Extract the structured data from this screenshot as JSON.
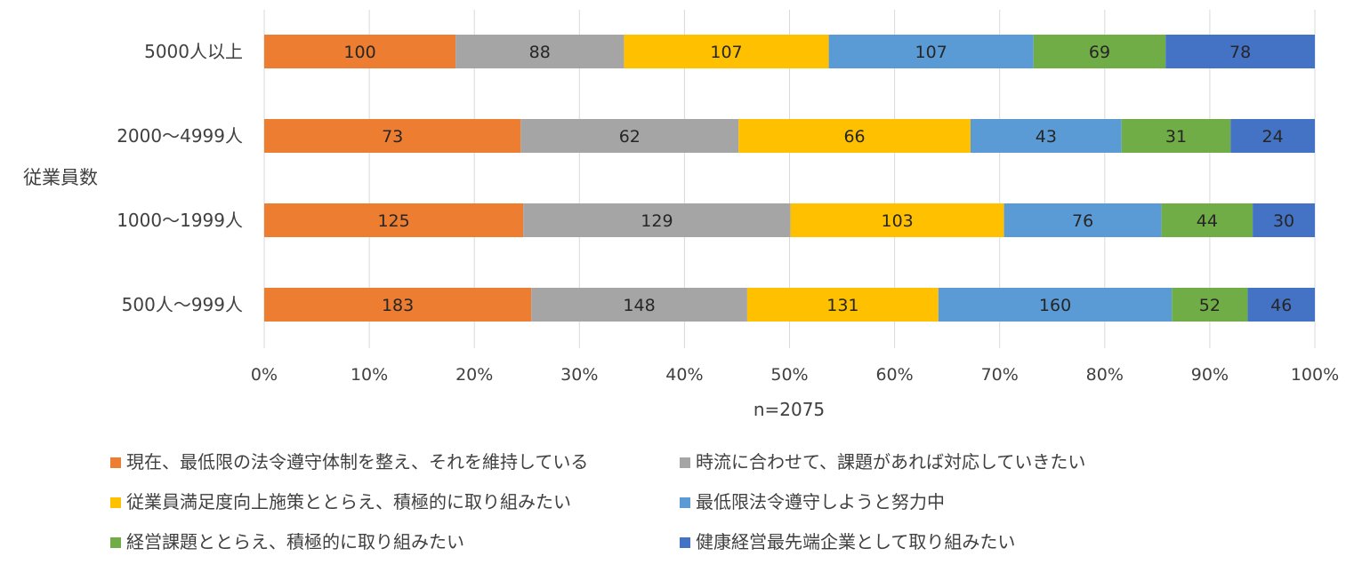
{
  "chart_data": {
    "type": "bar",
    "orientation": "horizontal",
    "stacked": "percent",
    "ylabel": "従業員数",
    "xlabel": "n=2075",
    "xlim": [
      0,
      100
    ],
    "x_ticks": [
      "0%",
      "10%",
      "20%",
      "30%",
      "40%",
      "50%",
      "60%",
      "70%",
      "80%",
      "90%",
      "100%"
    ],
    "grid": "vertical",
    "legend_position": "bottom",
    "categories": [
      "500人～999人",
      "1000～1999人",
      "2000～4999人",
      "5000人以上"
    ],
    "series": [
      {
        "name": "現在、最低限の法令遵守体制を整え、それを維持している",
        "color": "#ed7d31",
        "values": [
          183,
          125,
          73,
          100
        ]
      },
      {
        "name": "時流に合わせて、課題があれば対応していきたい",
        "color": "#a5a5a5",
        "values": [
          148,
          129,
          62,
          88
        ]
      },
      {
        "name": "従業員満足度向上施策ととらえ、積極的に取り組みたい",
        "color": "#ffc000",
        "values": [
          131,
          103,
          66,
          107
        ]
      },
      {
        "name": "最低限法令遵守しようと努力中",
        "color": "#5b9bd5",
        "values": [
          160,
          76,
          43,
          107
        ]
      },
      {
        "name": "経営課題ととらえ、積極的に取り組みたい",
        "color": "#70ad47",
        "values": [
          52,
          44,
          31,
          69
        ]
      },
      {
        "name": "健康経営最先端企業として取り組みたい",
        "color": "#4472c4",
        "values": [
          46,
          30,
          24,
          78
        ]
      }
    ]
  }
}
